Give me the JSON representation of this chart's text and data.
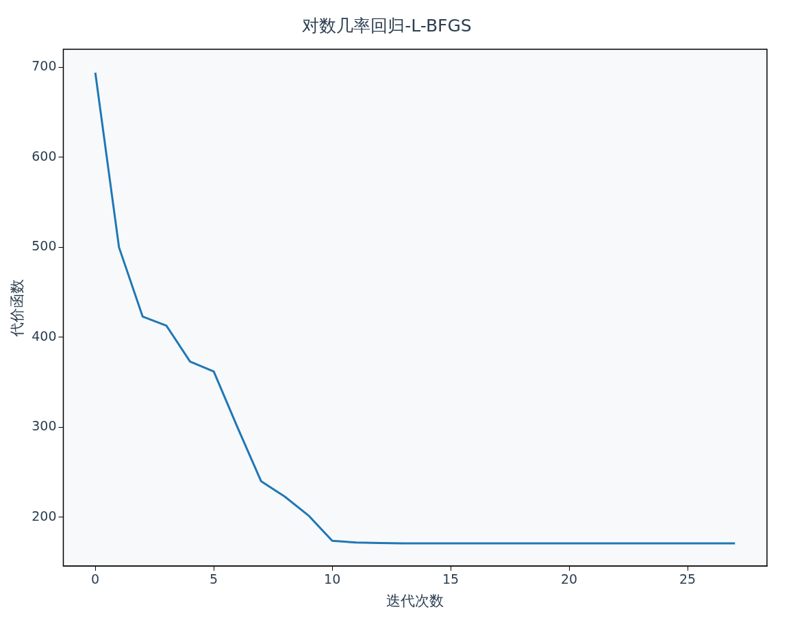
{
  "chart_data": {
    "type": "line",
    "title": "对数几率回归-L-BFGS",
    "xlabel": "迭代次数",
    "ylabel": "代价函数",
    "x": [
      0,
      1,
      2,
      3,
      4,
      5,
      6,
      7,
      8,
      9,
      10,
      11,
      12,
      13,
      14,
      15,
      16,
      17,
      18,
      19,
      20,
      21,
      22,
      23,
      24,
      25,
      26,
      27
    ],
    "series": [
      {
        "color": "#1f77b4",
        "values": [
          694,
          500,
          423,
          413,
          373,
          362,
          300,
          240,
          223,
          202,
          174,
          172,
          171.5,
          171,
          171,
          171,
          171,
          171,
          171,
          171,
          171,
          171,
          171,
          171,
          171,
          171,
          171,
          171
        ]
      }
    ],
    "xlim": [
      -1.35,
      28.35
    ],
    "ylim": [
      146,
      720
    ],
    "xticks": [
      0,
      5,
      10,
      15,
      20,
      25
    ],
    "yticks": [
      200,
      300,
      400,
      500,
      600,
      700
    ],
    "grid": false,
    "legend": false,
    "marker": "none",
    "line_style": "solid"
  }
}
